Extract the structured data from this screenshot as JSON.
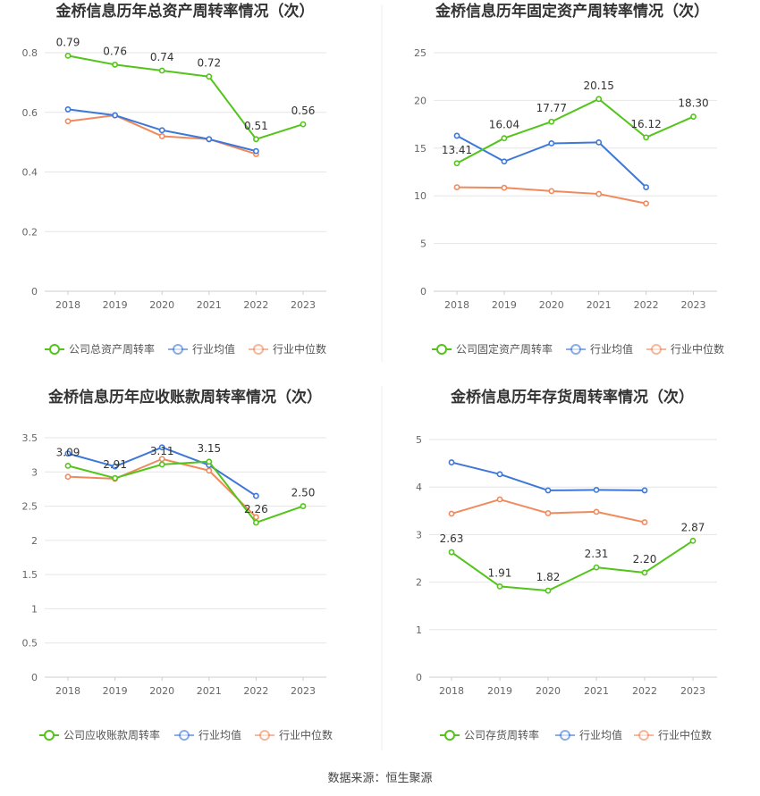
{
  "source_text": "数据来源：恒生聚源",
  "colors": {
    "company": "#52c41a",
    "avg": "#3d78d8",
    "median": "#f08a5d",
    "grid": "#e6e6e6",
    "axis": "#cccccc"
  },
  "chart_data": [
    {
      "type": "line",
      "title": "金桥信息历年总资产周转率情况（次）",
      "categories": [
        "2018",
        "2019",
        "2020",
        "2021",
        "2022",
        "2023"
      ],
      "ylim": [
        0,
        0.8
      ],
      "yticks": [
        0,
        0.2,
        0.4,
        0.6,
        0.8
      ],
      "ytick_labels": [
        "0",
        "0.2",
        "0.4",
        "0.6",
        "0.8"
      ],
      "series": [
        {
          "name": "公司总资产周转率",
          "key": "company",
          "values": [
            0.79,
            0.76,
            0.74,
            0.72,
            0.51,
            0.56
          ],
          "labels": [
            "0.79",
            "0.76",
            "0.74",
            "0.72",
            "0.51",
            "0.56"
          ]
        },
        {
          "name": "行业均值",
          "key": "avg",
          "values": [
            0.61,
            0.59,
            0.54,
            0.51,
            0.47,
            null
          ]
        },
        {
          "name": "行业中位数",
          "key": "median",
          "values": [
            0.57,
            0.59,
            0.52,
            0.51,
            0.46,
            null
          ]
        }
      ]
    },
    {
      "type": "line",
      "title": "金桥信息历年固定资产周转率情况（次）",
      "categories": [
        "2018",
        "2019",
        "2020",
        "2021",
        "2022",
        "2023"
      ],
      "ylim": [
        0,
        25
      ],
      "yticks": [
        0,
        5,
        10,
        15,
        20,
        25
      ],
      "ytick_labels": [
        "0",
        "5",
        "10",
        "15",
        "20",
        "25"
      ],
      "series": [
        {
          "name": "公司固定资产周转率",
          "key": "company",
          "values": [
            13.41,
            16.04,
            17.77,
            20.15,
            16.12,
            18.3
          ],
          "labels": [
            "13.41",
            "16.04",
            "17.77",
            "20.15",
            "16.12",
            "18.30"
          ]
        },
        {
          "name": "行业均值",
          "key": "avg",
          "values": [
            16.3,
            13.6,
            15.5,
            15.6,
            10.9,
            null
          ]
        },
        {
          "name": "行业中位数",
          "key": "median",
          "values": [
            10.9,
            10.85,
            10.5,
            10.2,
            9.2,
            null
          ]
        }
      ]
    },
    {
      "type": "line",
      "title": "金桥信息历年应收账款周转率情况（次）",
      "categories": [
        "2018",
        "2019",
        "2020",
        "2021",
        "2022",
        "2023"
      ],
      "ylim": [
        0,
        3.5
      ],
      "yticks": [
        0,
        0.5,
        1,
        1.5,
        2,
        2.5,
        3,
        3.5
      ],
      "ytick_labels": [
        "0",
        "0.5",
        "1",
        "1.5",
        "2",
        "2.5",
        "3",
        "3.5"
      ],
      "series": [
        {
          "name": "公司应收账款周转率",
          "key": "company",
          "values": [
            3.09,
            2.91,
            3.11,
            3.15,
            2.26,
            2.5
          ],
          "labels": [
            "3.09",
            "2.91",
            "3.11",
            "3.15",
            "2.26",
            "2.50"
          ]
        },
        {
          "name": "行业均值",
          "key": "avg",
          "values": [
            3.27,
            3.08,
            3.36,
            3.1,
            2.65,
            null
          ]
        },
        {
          "name": "行业中位数",
          "key": "median",
          "values": [
            2.93,
            2.9,
            3.19,
            3.02,
            2.34,
            null
          ]
        }
      ]
    },
    {
      "type": "line",
      "title": "金桥信息历年存货周转率情况（次）",
      "categories": [
        "2018",
        "2019",
        "2020",
        "2021",
        "2022",
        "2023"
      ],
      "ylim": [
        0,
        5
      ],
      "yticks": [
        0,
        1,
        2,
        3,
        4,
        5
      ],
      "ytick_labels": [
        "0",
        "1",
        "2",
        "3",
        "4",
        "5"
      ],
      "series": [
        {
          "name": "公司存货周转率",
          "key": "company",
          "values": [
            2.63,
            1.91,
            1.82,
            2.31,
            2.2,
            2.87
          ],
          "labels": [
            "2.63",
            "1.91",
            "1.82",
            "2.31",
            "2.20",
            "2.87"
          ]
        },
        {
          "name": "行业均值",
          "key": "avg",
          "values": [
            4.52,
            4.27,
            3.93,
            3.94,
            3.93,
            null
          ]
        },
        {
          "name": "行业中位数",
          "key": "median",
          "values": [
            3.44,
            3.74,
            3.45,
            3.48,
            3.26,
            null
          ]
        }
      ]
    }
  ]
}
